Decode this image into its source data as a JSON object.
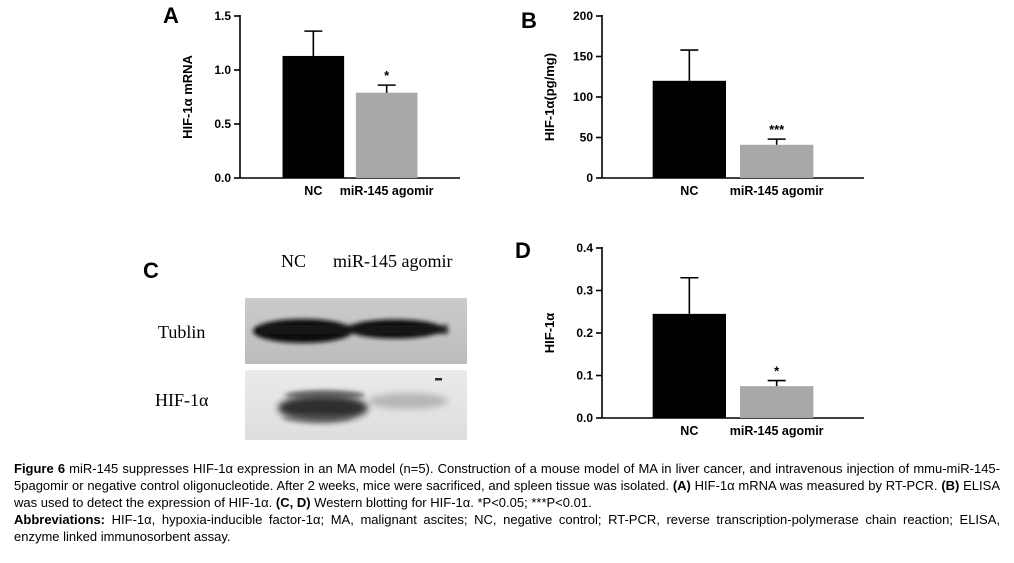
{
  "figure": {
    "panel_letters": {
      "a": "A",
      "b": "B",
      "c": "C",
      "d": "D"
    },
    "blot": {
      "col_labels": [
        "NC",
        "miR-145 agomir"
      ],
      "row_labels": [
        "Tublin",
        "HIF-1α"
      ]
    }
  },
  "chart_data": [
    {
      "type": "bar",
      "panel": "A",
      "ylabel": "HIF-1α mRNA",
      "ylim": [
        0,
        1.5
      ],
      "yticks": [
        {
          "v": 0,
          "label": "0.0"
        },
        {
          "v": 0.5,
          "label": "0.5"
        },
        {
          "v": 1.0,
          "label": "1.0"
        },
        {
          "v": 1.5,
          "label": "1.5"
        }
      ],
      "categories": [
        "NC",
        "miR-145 agomir"
      ],
      "values": [
        1.13,
        0.79
      ],
      "errors": [
        0.23,
        0.07
      ],
      "sig": [
        "",
        "*"
      ],
      "bar_colors": [
        "#000000",
        "#a8a8a8"
      ],
      "grid": false,
      "legend": null
    },
    {
      "type": "bar",
      "panel": "B",
      "ylabel": "HIF-1α(pg/mg)",
      "ylim": [
        0,
        200
      ],
      "yticks": [
        {
          "v": 0,
          "label": "0"
        },
        {
          "v": 50,
          "label": "50"
        },
        {
          "v": 100,
          "label": "100"
        },
        {
          "v": 150,
          "label": "150"
        },
        {
          "v": 200,
          "label": "200"
        }
      ],
      "categories": [
        "NC",
        "miR-145 agomir"
      ],
      "values": [
        120,
        41
      ],
      "errors": [
        38,
        7
      ],
      "sig": [
        "",
        "***"
      ],
      "bar_colors": [
        "#000000",
        "#a8a8a8"
      ],
      "grid": false,
      "legend": null
    },
    {
      "type": "bar",
      "panel": "D",
      "ylabel": "HIF-1α",
      "ylim": [
        0,
        0.4
      ],
      "yticks": [
        {
          "v": 0,
          "label": "0.0"
        },
        {
          "v": 0.1,
          "label": "0.1"
        },
        {
          "v": 0.2,
          "label": "0.2"
        },
        {
          "v": 0.3,
          "label": "0.3"
        },
        {
          "v": 0.4,
          "label": "0.4"
        }
      ],
      "categories": [
        "NC",
        "miR-145 agomir"
      ],
      "values": [
        0.245,
        0.075
      ],
      "errors": [
        0.085,
        0.013
      ],
      "sig": [
        "",
        "*"
      ],
      "bar_colors": [
        "#000000",
        "#a8a8a8"
      ],
      "grid": false,
      "legend": null
    }
  ],
  "caption": {
    "segments": [
      {
        "t": "Figure 6 ",
        "b": 1
      },
      {
        "t": "miR-145 suppresses HIF-1α expression in an MA model (n=5). Construction of a mouse model of MA in liver cancer, and intravenous injection of mmu-miR-145-5pagomir or negative control oligonucleotide. After 2 weeks, mice were sacrificed, and spleen tissue was isolated. ",
        "b": 0
      },
      {
        "t": "(A)",
        "b": 1
      },
      {
        "t": " HIF-1α mRNA was measured by RT-PCR. ",
        "b": 0
      },
      {
        "t": "(B)",
        "b": 1
      },
      {
        "t": " ELISA was used to detect the expression of HIF-1α. ",
        "b": 0
      },
      {
        "t": "(C, D)",
        "b": 1
      },
      {
        "t": " Western blotting for HIF-1α. *P<0.05; ***P<0.01.",
        "b": 0
      }
    ],
    "abbrev_segments": [
      {
        "t": "Abbreviations: ",
        "b": 1
      },
      {
        "t": "HIF-1α, hypoxia-inducible factor-1α; MA, malignant ascites; NC, negative control; RT-PCR, reverse transcription-polymerase chain reaction; ELISA, enzyme linked immunosorbent assay.",
        "b": 0
      }
    ]
  }
}
